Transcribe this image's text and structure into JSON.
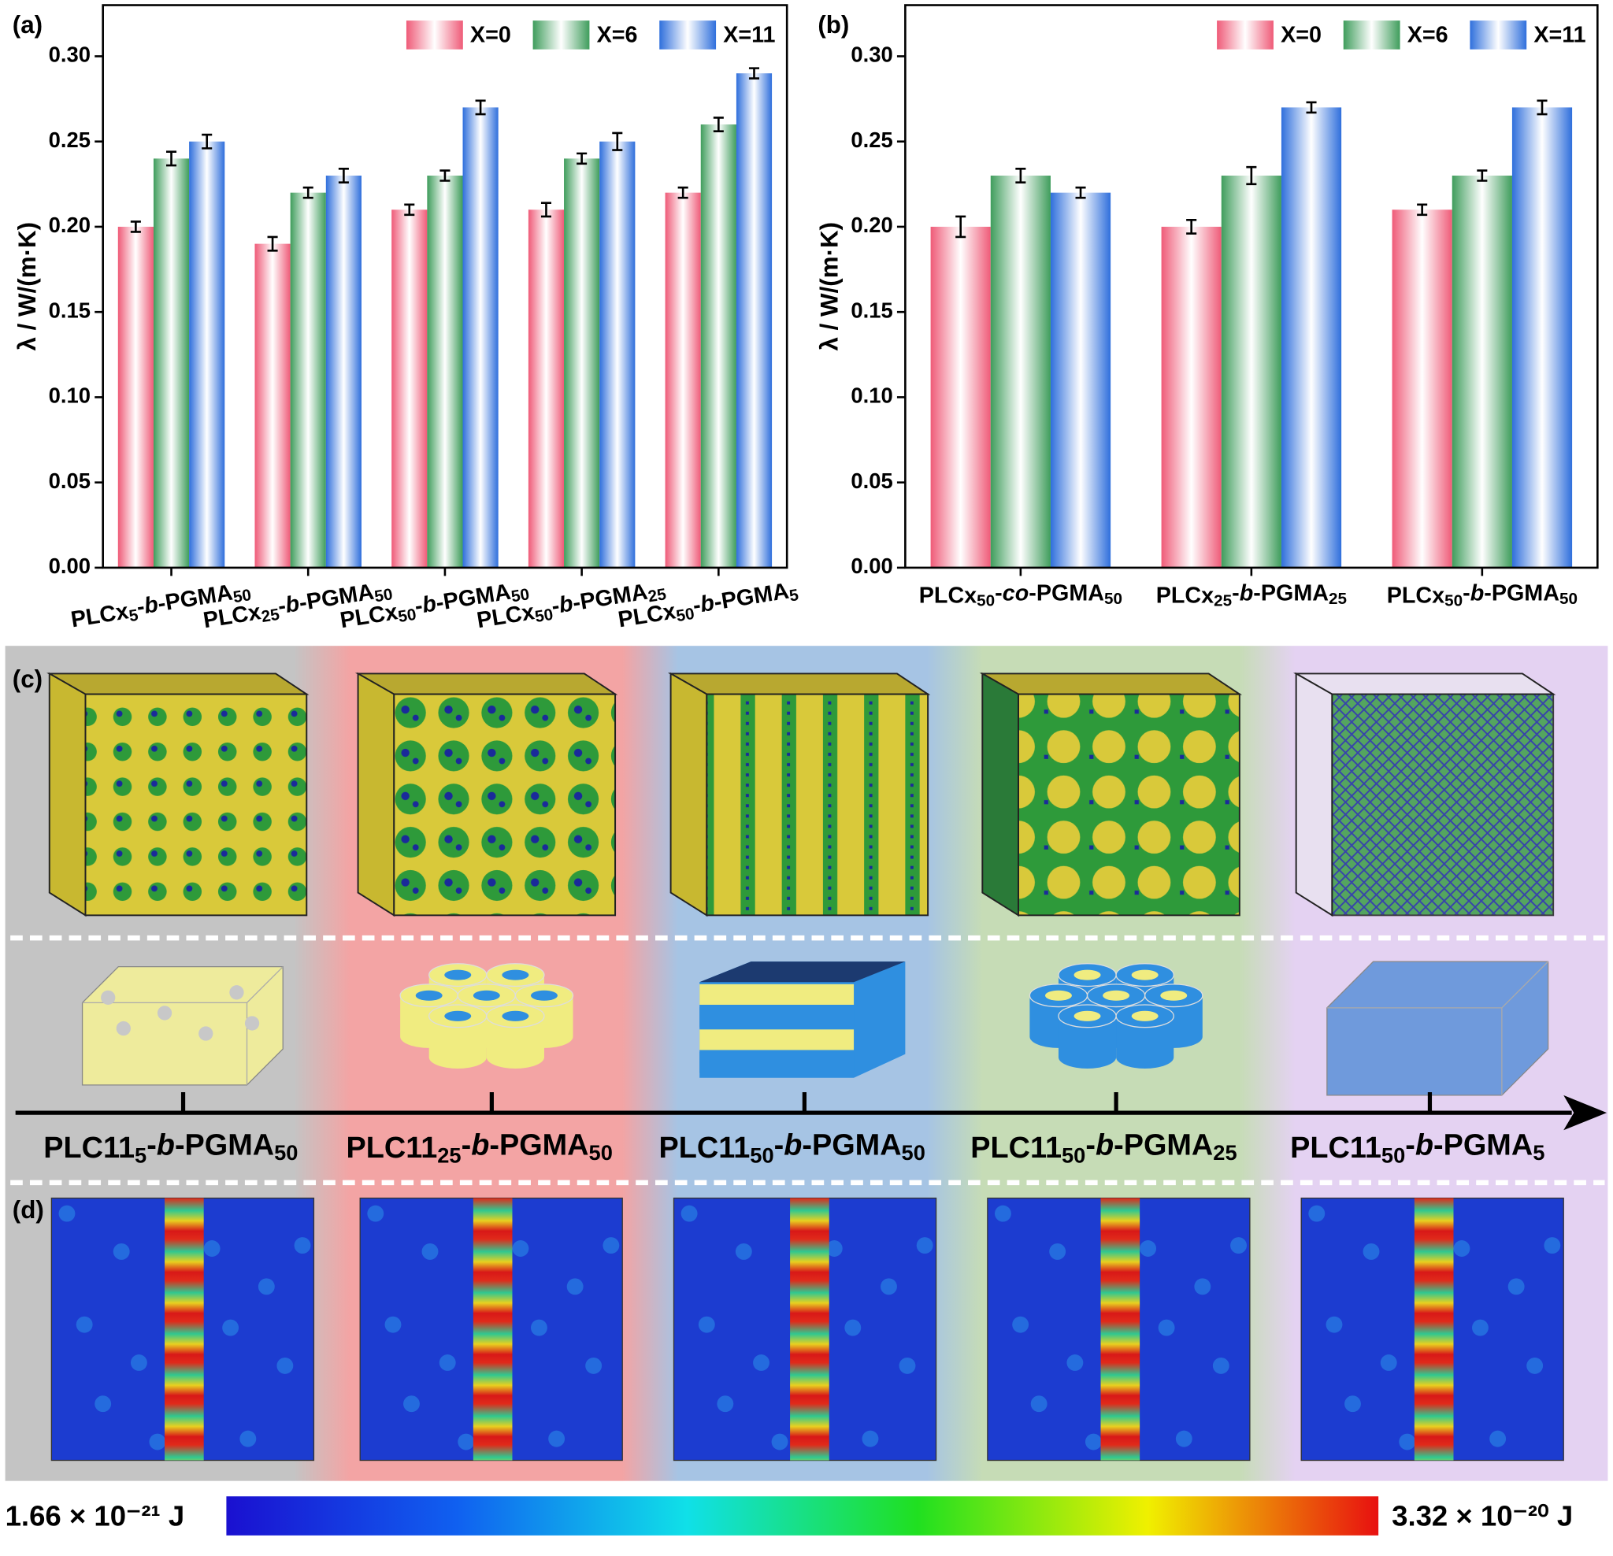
{
  "chart_data": [
    {
      "type": "bar",
      "panel_label": "(a)",
      "ylabel": "λ / W/(m·K)",
      "categories": [
        "PLCx5-b-PGMA50",
        "PLCx25-b-PGMA50",
        "PLCx50-b-PGMA50",
        "PLCx50-b-PGMA25",
        "PLCx50-b-PGMA5"
      ],
      "series": [
        {
          "name": "X=0",
          "color": "#ef5b78",
          "values": [
            0.2,
            0.19,
            0.21,
            0.21,
            0.22
          ],
          "errors": [
            0.003,
            0.004,
            0.003,
            0.004,
            0.003
          ]
        },
        {
          "name": "X=6",
          "color": "#3f9d5c",
          "values": [
            0.24,
            0.22,
            0.23,
            0.24,
            0.26
          ],
          "errors": [
            0.004,
            0.003,
            0.003,
            0.003,
            0.004
          ]
        },
        {
          "name": "X=11",
          "color": "#2f6fdc",
          "values": [
            0.25,
            0.23,
            0.27,
            0.25,
            0.29
          ],
          "errors": [
            0.004,
            0.004,
            0.004,
            0.005,
            0.003
          ]
        }
      ],
      "ylim": [
        0,
        0.33
      ],
      "yticks": [
        {
          "value": 0,
          "label": "0.00"
        },
        0.05,
        {
          "value": 0.1,
          "label": "0.10"
        },
        0.15,
        {
          "value": 0.2,
          "label": "0.20"
        },
        0.25,
        {
          "value": 0.3,
          "label": "0.30"
        }
      ],
      "legend": "upper right"
    },
    {
      "type": "bar",
      "panel_label": "(b)",
      "ylabel": "λ / W/(m·K)",
      "categories": [
        "PLCx50-co-PGMA50",
        "PLCx25-b-PGMA25",
        "PLCx50-b-PGMA50"
      ],
      "series": [
        {
          "name": "X=0",
          "color": "#ef5b78",
          "values": [
            0.2,
            0.2,
            0.21
          ],
          "errors": [
            0.006,
            0.004,
            0.003
          ]
        },
        {
          "name": "X=6",
          "color": "#3f9d5c",
          "values": [
            0.23,
            0.23,
            0.23
          ],
          "errors": [
            0.004,
            0.005,
            0.003
          ]
        },
        {
          "name": "X=11",
          "color": "#2f6fdc",
          "values": [
            0.22,
            0.27,
            0.27
          ],
          "errors": [
            0.003,
            0.003,
            0.004
          ]
        }
      ],
      "ylim": [
        0,
        0.33
      ],
      "yticks": [
        {
          "value": 0,
          "label": "0.00"
        },
        0.05,
        {
          "value": 0.1,
          "label": "0.10"
        },
        0.15,
        {
          "value": 0.2,
          "label": "0.20"
        },
        0.25,
        {
          "value": 0.3,
          "label": "0.30"
        }
      ],
      "legend": "upper right"
    }
  ],
  "panel_c": {
    "label": "(c)",
    "structures": [
      "PLC115-b-PGMA50",
      "PLC1125-b-PGMA50",
      "PLC1150-b-PGMA50",
      "PLC1150-b-PGMA25",
      "PLC1150-b-PGMA5"
    ]
  },
  "panel_d": {
    "label": "(d)",
    "colorbar": {
      "min_label": "1.66 × 10⁻²¹ J",
      "max_label": "3.32 × 10⁻²⁰ J"
    }
  }
}
